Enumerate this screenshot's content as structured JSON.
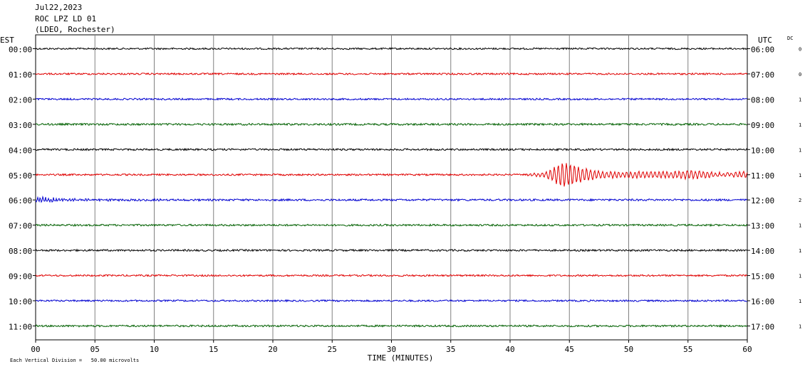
{
  "header": {
    "date": "Jul22,2023",
    "station": "ROC LPZ LD 01",
    "network": "(LDEO, Rochester)"
  },
  "left_axis_title": "EST",
  "right_axis_title": "UTC",
  "dc_title": "DC",
  "footer": {
    "scale_note": "Each Vertical Division =   50.00 microvolts",
    "xlabel": "TIME (MINUTES)"
  },
  "colors": {
    "trace_cycle": [
      "#000000",
      "#e00000",
      "#0000d0",
      "#006000"
    ],
    "grid": "#808080"
  },
  "chart_data": {
    "type": "line",
    "title": "ROC LPZ LD 01",
    "xlabel": "TIME (MINUTES)",
    "xlim": [
      0,
      60
    ],
    "x_ticks": [
      "00",
      "05",
      "10",
      "15",
      "20",
      "25",
      "30",
      "35",
      "40",
      "45",
      "50",
      "55",
      "60"
    ],
    "traces": [
      {
        "est": "00:00",
        "utc": "06:00",
        "dc": "0",
        "color": "#000000",
        "noise": 1.2
      },
      {
        "est": "01:00",
        "utc": "07:00",
        "dc": "0",
        "color": "#e00000",
        "noise": 1.2
      },
      {
        "est": "02:00",
        "utc": "08:00",
        "dc": "1",
        "color": "#0000d0",
        "noise": 1.2
      },
      {
        "est": "03:00",
        "utc": "09:00",
        "dc": "1",
        "color": "#006000",
        "noise": 1.4
      },
      {
        "est": "04:00",
        "utc": "10:00",
        "dc": "1",
        "color": "#000000",
        "noise": 1.3
      },
      {
        "est": "05:00",
        "utc": "11:00",
        "dc": "1",
        "color": "#e00000",
        "noise": 1.2,
        "event": {
          "onset_min": 41.5,
          "peak_min": 44.5,
          "peak_amp": 18,
          "end_min": 60
        }
      },
      {
        "est": "06:00",
        "utc": "12:00",
        "dc": "2",
        "color": "#0000d0",
        "noise": 1.4,
        "early_wave": true
      },
      {
        "est": "07:00",
        "utc": "13:00",
        "dc": "1",
        "color": "#006000",
        "noise": 1.3
      },
      {
        "est": "08:00",
        "utc": "14:00",
        "dc": "1",
        "color": "#000000",
        "noise": 1.3
      },
      {
        "est": "09:00",
        "utc": "15:00",
        "dc": "1",
        "color": "#e00000",
        "noise": 1.2
      },
      {
        "est": "10:00",
        "utc": "16:00",
        "dc": "1",
        "color": "#0000d0",
        "noise": 1.2
      },
      {
        "est": "11:00",
        "utc": "17:00",
        "dc": "1",
        "color": "#006000",
        "noise": 1.3
      }
    ]
  }
}
